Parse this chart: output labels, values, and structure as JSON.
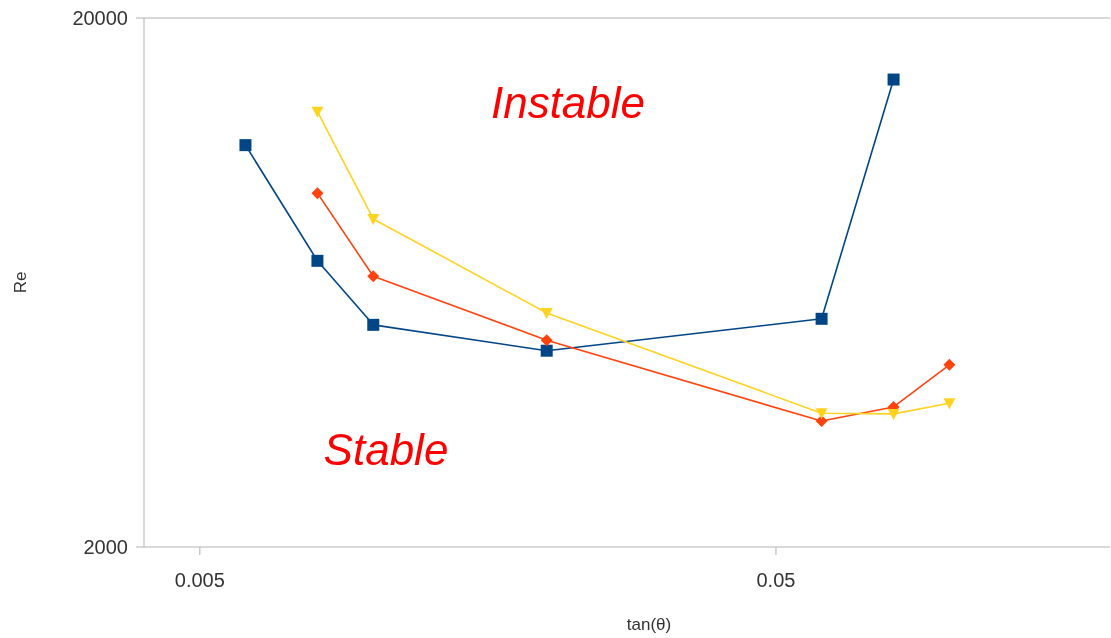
{
  "chart_data": {
    "type": "line",
    "xlabel": "tan(θ)",
    "ylabel": "Re",
    "log": "xy",
    "xlim": [
      0.004,
      0.19
    ],
    "ylim": [
      2000,
      20000
    ],
    "xticks": [
      0.005,
      0.05
    ],
    "yticks": [
      2000,
      20000
    ],
    "grid": false,
    "line_style": "solid",
    "annotations": [
      "Instable",
      "Stable"
    ],
    "series": [
      {
        "color": "#004586",
        "marker": "square",
        "x": [
          0.006,
          0.008,
          0.01,
          0.02,
          0.06,
          0.08
        ],
        "values": [
          11500,
          6950,
          5260,
          4700,
          5400,
          15300
        ]
      },
      {
        "color": "#ff420e",
        "marker": "diamond",
        "x": [
          0.008,
          0.01,
          0.02,
          0.06,
          0.08,
          0.1
        ],
        "values": [
          9330,
          6500,
          4920,
          3460,
          3680,
          4420
        ]
      },
      {
        "color": "#ffd320",
        "marker": "triangle",
        "x": [
          0.008,
          0.01,
          0.02,
          0.06,
          0.08,
          0.1
        ],
        "values": [
          13300,
          8340,
          5540,
          3580,
          3570,
          3740
        ]
      }
    ]
  }
}
